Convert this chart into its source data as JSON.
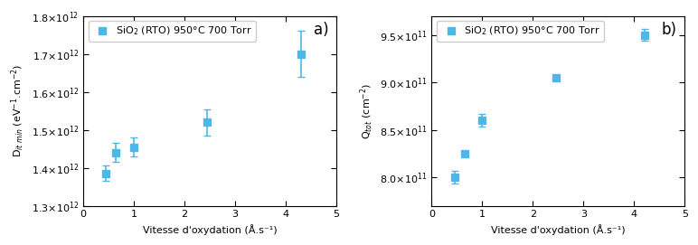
{
  "panel_a": {
    "x": [
      0.45,
      0.65,
      1.0,
      2.45,
      4.3
    ],
    "y": [
      1385000000000.0,
      1440000000000.0,
      1455000000000.0,
      1520000000000.0,
      1700000000000.0
    ],
    "yerr": [
      20000000000.0,
      25000000000.0,
      25000000000.0,
      35000000000.0,
      60000000000.0
    ],
    "xlabel": "Vitesse d'oxydation (Å.s⁻¹)",
    "ylabel": "D$_{it\\ min}$ (eV$^{-1}$.cm$^{-2}$)",
    "xlim": [
      0,
      5
    ],
    "ylim": [
      1300000000000.0,
      1800000000000.0
    ],
    "yticks": [
      1300000000000.0,
      1400000000000.0,
      1500000000000.0,
      1600000000000.0,
      1700000000000.0,
      1800000000000.0
    ],
    "ytick_labels": [
      "1.3×10$^{12}$",
      "1.4×10$^{12}$",
      "1.5×10$^{12}$",
      "1.6×10$^{12}$",
      "1.7×10$^{12}$",
      "1.8×10$^{12}$"
    ],
    "xticks": [
      0,
      1,
      2,
      3,
      4,
      5
    ],
    "label": "a)",
    "legend_label": "SiO$_2$ (RTO) 950°C 700 Torr"
  },
  "panel_b": {
    "x": [
      0.45,
      0.65,
      1.0,
      2.45,
      4.2
    ],
    "y": [
      800000000000.0,
      825000000000.0,
      860000000000.0,
      905000000000.0,
      950000000000.0
    ],
    "yerr": [
      7000000000.0,
      2000000000.0,
      7000000000.0,
      2000000000.0,
      6000000000.0
    ],
    "xlabel": "Vitesse d'oxydation (Å.s⁻¹)",
    "ylabel": "Q$_{tot}$ (cm$^{-2}$)",
    "xlim": [
      0,
      5
    ],
    "ylim": [
      770000000000.0,
      970000000000.0
    ],
    "yticks": [
      800000000000.0,
      850000000000.0,
      900000000000.0,
      950000000000.0
    ],
    "ytick_labels": [
      "8.0×10$^{11}$",
      "8.5×10$^{11}$",
      "9.0×10$^{11}$",
      "9.5×10$^{11}$"
    ],
    "xticks": [
      0,
      1,
      2,
      3,
      4,
      5
    ],
    "label": "b)",
    "legend_label": "SiO$_2$ (RTO) 950°C 700 Torr"
  },
  "marker_color": "#4db8e8",
  "marker_size": 6,
  "marker": "s",
  "ecolor": "#4db8e8",
  "elinewidth": 1.2,
  "capsize": 3,
  "label_fontsize": 8,
  "tick_fontsize": 8,
  "legend_fontsize": 8,
  "panel_label_fontsize": 12
}
